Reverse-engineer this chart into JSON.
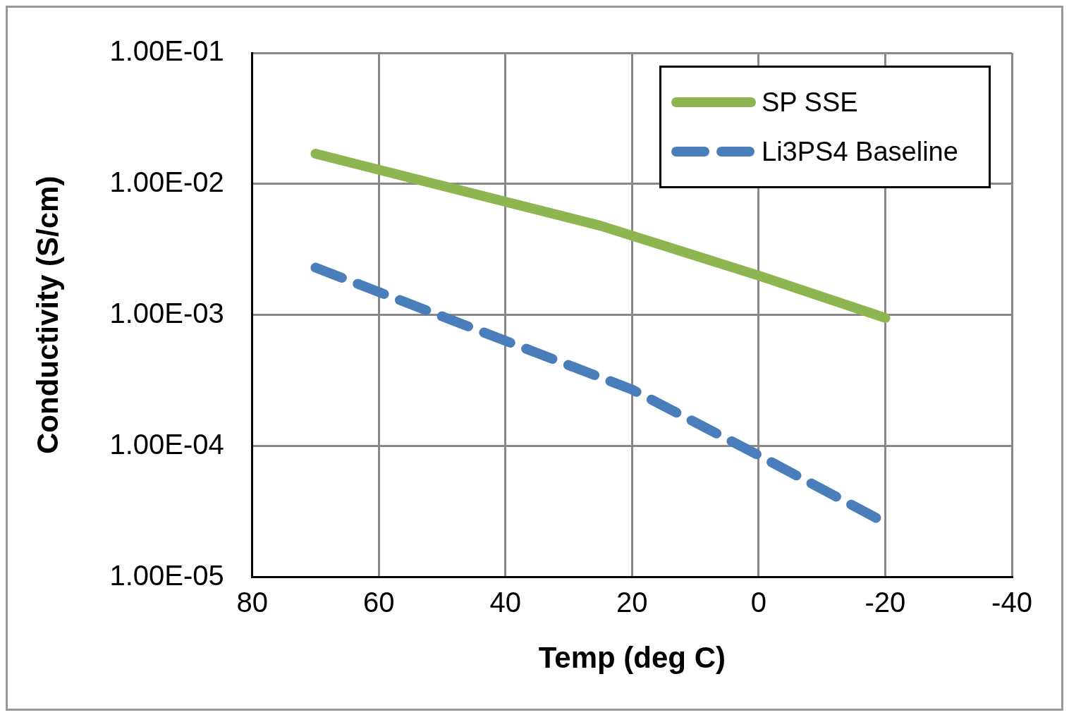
{
  "chart_data": {
    "type": "line",
    "xlabel": "Temp (deg C)",
    "ylabel": "Conductivity (S/cm)",
    "series": [
      {
        "name": "SP SSE",
        "color": "#8db550",
        "line_style": "solid",
        "x": [
          70,
          25,
          0,
          -20
        ],
        "values": [
          0.017,
          0.0048,
          0.002,
          0.00095
        ]
      },
      {
        "name": "Li3PS4 Baseline",
        "color": "#4a7ebb",
        "line_style": "dashed",
        "x": [
          70,
          20,
          0,
          -20
        ],
        "values": [
          0.0023,
          0.00027,
          8.5e-05,
          2.6e-05
        ]
      }
    ],
    "xlim": [
      80,
      -40
    ],
    "xticks": [
      80,
      60,
      40,
      20,
      0,
      -20,
      -40
    ],
    "ylim": [
      1e-05,
      0.1
    ],
    "yticks": [
      {
        "value": 0.1,
        "label": "1.00E-01"
      },
      {
        "value": 0.01,
        "label": "1.00E-02"
      },
      {
        "value": 0.001,
        "label": "1.00E-03"
      },
      {
        "value": 0.0001,
        "label": "1.00E-04"
      },
      {
        "value": 1e-05,
        "label": "1.00E-05"
      }
    ],
    "log": "y",
    "grid": true,
    "legend": "top right",
    "marker": "none"
  }
}
